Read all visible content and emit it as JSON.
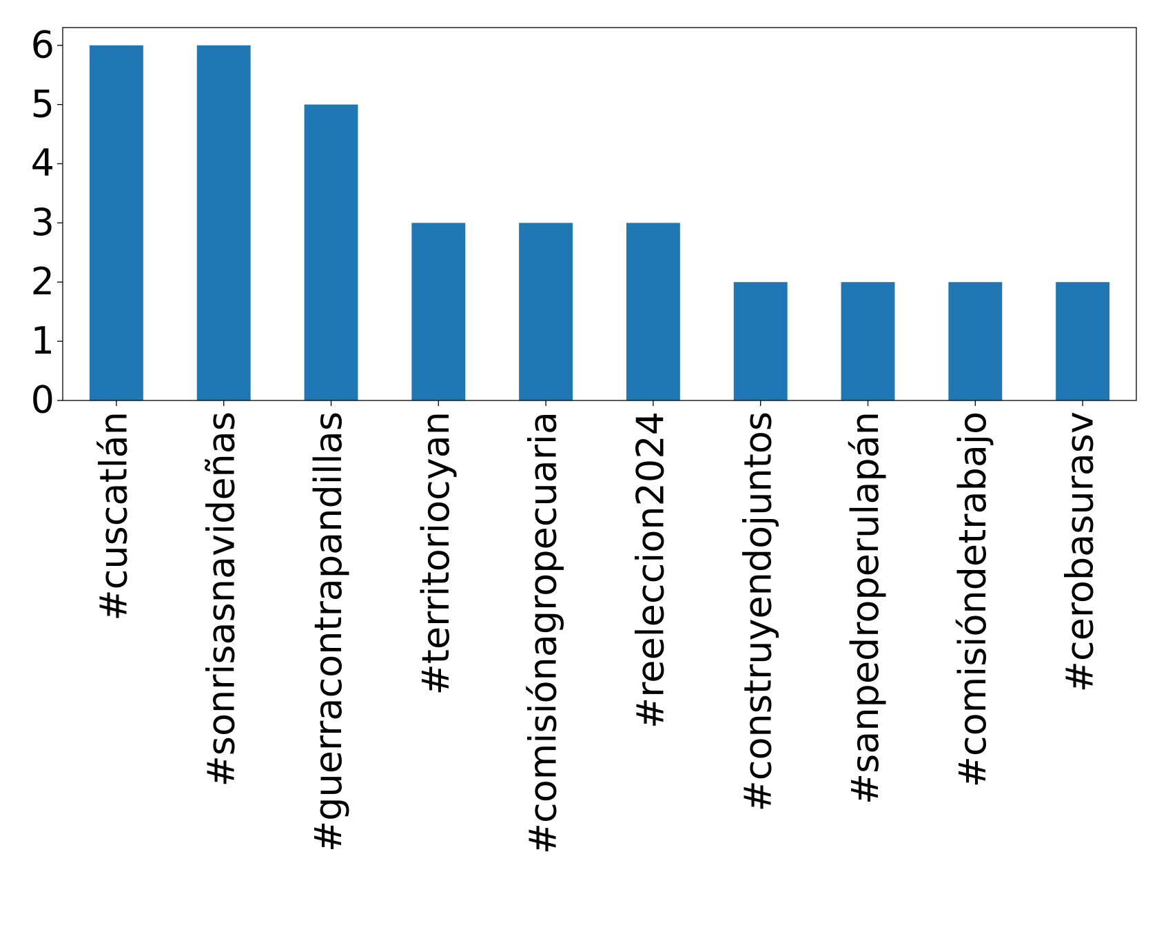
{
  "chart_data": {
    "type": "bar",
    "categories": [
      "#cuscatlán",
      "#sonrisasnavideñas",
      "#guerracontrapandillas",
      "#territoriocyan",
      "#comisiónagropecuaria",
      "#reeleccion2024",
      "#construyendojuntos",
      "#sanpedroperulapán",
      "#comisióndetrabajo",
      "#cerobasurasv"
    ],
    "values": [
      6,
      6,
      5,
      3,
      3,
      3,
      2,
      2,
      2,
      2
    ],
    "color": "#1f77b4",
    "ylim": [
      0,
      6.3
    ],
    "yticks": [
      0,
      1,
      2,
      3,
      4,
      5,
      6
    ],
    "grid": false
  }
}
